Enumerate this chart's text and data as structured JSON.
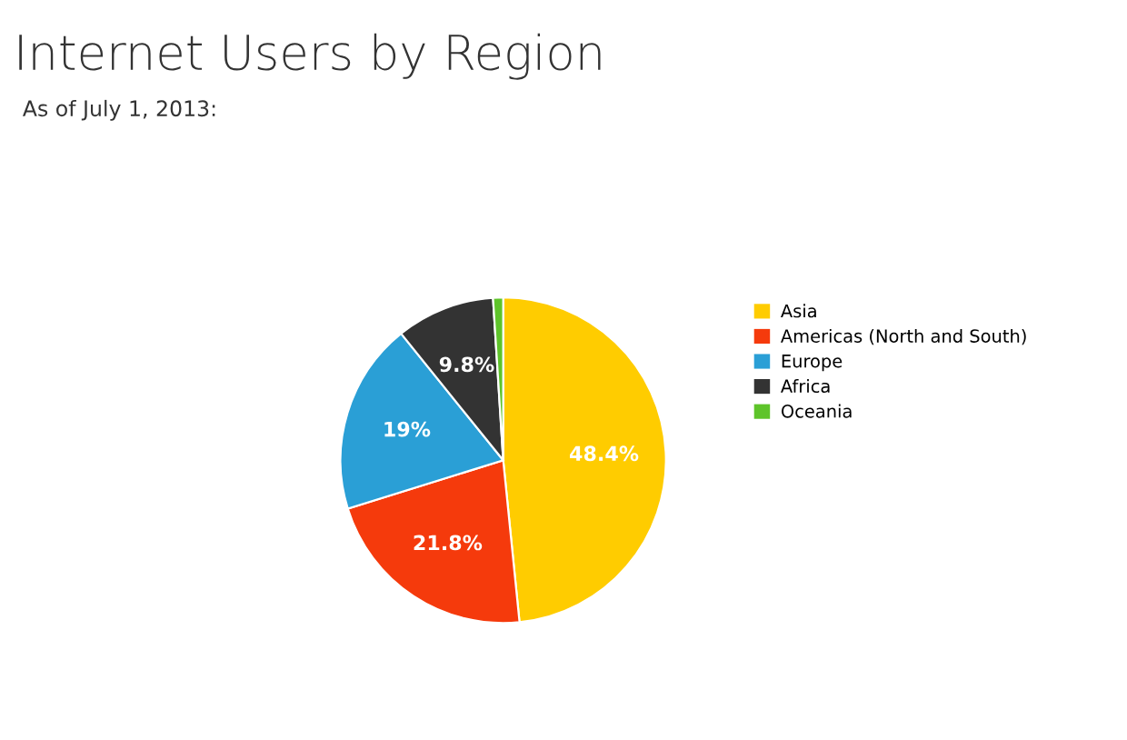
{
  "chart_data": {
    "type": "pie",
    "title": "Internet Users by Region",
    "subtitle": "As of July 1, 2013:",
    "categories": [
      "Asia",
      "Americas (North and South)",
      "Europe",
      "Africa",
      "Oceania"
    ],
    "values": [
      48.4,
      21.8,
      19,
      9.8,
      1.0
    ],
    "colors": [
      "#ffcc00",
      "#f53a0c",
      "#2a9fd6",
      "#333333",
      "#5ec42a"
    ],
    "value_labels": [
      "48.4%",
      "21.8%",
      "19%",
      "9.8%",
      null
    ],
    "legend": "right"
  }
}
